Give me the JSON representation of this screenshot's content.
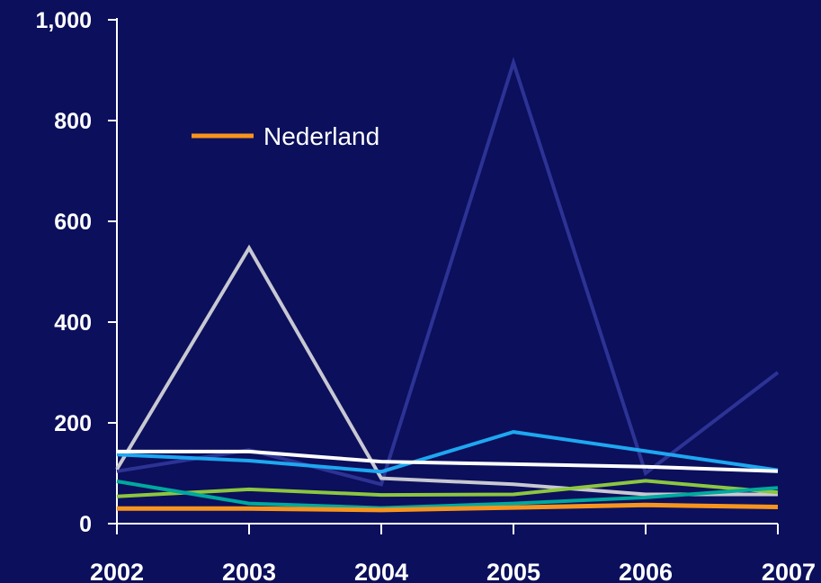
{
  "chart_data": {
    "type": "line",
    "title": "",
    "xlabel": "",
    "ylabel": "",
    "x": [
      "2002",
      "2003",
      "2004",
      "2005",
      "2006",
      "2007"
    ],
    "ylim": [
      0,
      1000
    ],
    "yticks": [
      0,
      200,
      400,
      600,
      800,
      1000
    ],
    "ytick_labels": [
      "0",
      "200",
      "400",
      "600",
      "800",
      "1,000"
    ],
    "grid": false,
    "legend": {
      "position": "top-left",
      "entries": [
        "Nederland"
      ]
    },
    "background_color": "#0b0f5c",
    "series": [
      {
        "color": "#2d3394",
        "values": [
          104,
          146,
          78,
          915,
          100,
          300
        ]
      },
      {
        "color": "#c8c8d2",
        "values": [
          108,
          547,
          90,
          78,
          58,
          58
        ]
      },
      {
        "color": "#1ea7f0",
        "values": [
          137,
          125,
          103,
          182,
          144,
          106
        ]
      },
      {
        "color": "#ffffff",
        "values": [
          143,
          143,
          123,
          118,
          113,
          104
        ]
      },
      {
        "color": "#8cc63f",
        "values": [
          54,
          68,
          57,
          58,
          85,
          62
        ]
      },
      {
        "color": "#00a99d",
        "values": [
          84,
          40,
          31,
          40,
          52,
          71
        ]
      },
      {
        "name": "Nederland",
        "color": "#f7941d",
        "values": [
          30,
          30,
          27,
          32,
          37,
          33
        ]
      }
    ]
  }
}
